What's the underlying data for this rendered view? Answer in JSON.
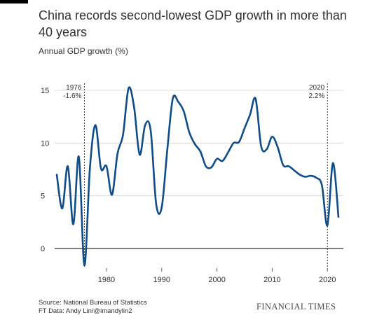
{
  "title": "China records second-lowest GDP growth in more than 40 years",
  "subtitle": "Annual GDP growth (%)",
  "source": {
    "line1": "Source: National Bureau of Statistics",
    "line2": "FT Data: Andy Lin/@imandylin2"
  },
  "brand": "FINANCIAL TIMES",
  "colors": {
    "line": "#0f4c8a",
    "grid": "#e0d8d0",
    "text": "#33302e",
    "zero": "#33302e"
  },
  "chart_data": {
    "type": "line",
    "title": "China records second-lowest GDP growth in more than 40 years",
    "ylabel": "Annual GDP growth (%)",
    "xlabel": "",
    "xlim": [
      1971,
      2022
    ],
    "ylim": [
      -2,
      16
    ],
    "grid": true,
    "x_ticks": [
      1980,
      1990,
      2000,
      2010,
      2020
    ],
    "y_ticks": [
      0,
      5,
      10,
      15
    ],
    "series": [
      {
        "name": "",
        "x": [
          1971,
          1972,
          1973,
          1974,
          1975,
          1976,
          1977,
          1978,
          1979,
          1980,
          1981,
          1982,
          1983,
          1984,
          1985,
          1986,
          1987,
          1988,
          1989,
          1990,
          1991,
          1992,
          1993,
          1994,
          1995,
          1996,
          1997,
          1998,
          1999,
          2000,
          2001,
          2002,
          2003,
          2004,
          2005,
          2006,
          2007,
          2008,
          2009,
          2010,
          2011,
          2012,
          2013,
          2014,
          2015,
          2016,
          2017,
          2018,
          2019,
          2020,
          2021,
          2022
        ],
        "y": [
          7.0,
          3.8,
          7.8,
          2.3,
          8.7,
          -1.6,
          7.6,
          11.7,
          7.6,
          7.8,
          5.1,
          9.0,
          10.8,
          15.2,
          13.4,
          8.9,
          11.7,
          11.2,
          4.2,
          3.9,
          9.3,
          14.2,
          13.9,
          13.0,
          11.0,
          9.9,
          9.2,
          7.8,
          7.7,
          8.5,
          8.3,
          9.1,
          10.0,
          10.1,
          11.4,
          12.7,
          14.2,
          9.7,
          9.4,
          10.6,
          9.6,
          7.9,
          7.8,
          7.4,
          7.0,
          6.8,
          6.9,
          6.7,
          6.0,
          2.2,
          8.1,
          3.0
        ]
      }
    ],
    "annotations": [
      {
        "x": 1976,
        "year_label": "1976",
        "value_label": "-1.6%",
        "align": "left"
      },
      {
        "x": 2020,
        "year_label": "2020",
        "value_label": "2.2%",
        "align": "right"
      }
    ]
  }
}
